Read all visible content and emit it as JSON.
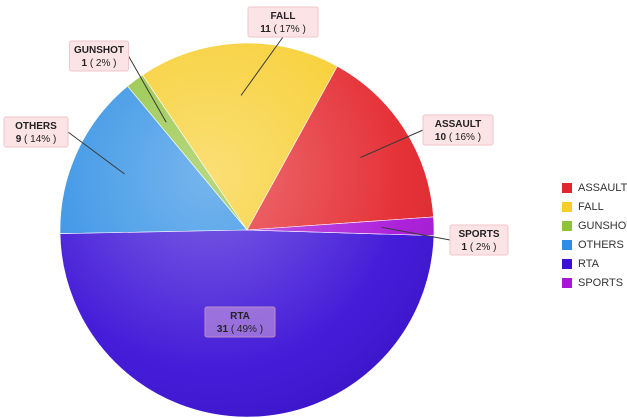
{
  "chart_data": {
    "type": "pie",
    "title": "",
    "slices": [
      {
        "label": "ASSAULT",
        "value": 10,
        "percent_label": "( 16% )",
        "color": "#e3262c"
      },
      {
        "label": "FALL",
        "value": 11,
        "percent_label": "( 17% )",
        "color": "#f7cd2a"
      },
      {
        "label": "GUNSHOT",
        "value": 1,
        "percent_label": "( 2% )",
        "color": "#8fc23b"
      },
      {
        "label": "OTHERS",
        "value": 9,
        "percent_label": "( 14% )",
        "color": "#2d8ee4"
      },
      {
        "label": "RTA",
        "value": 31,
        "percent_label": "( 49% )",
        "color": "#3b10d6"
      },
      {
        "label": "SPORTS",
        "value": 1,
        "percent_label": "( 2% )",
        "color": "#a816d8"
      }
    ],
    "legend_position": "right"
  }
}
